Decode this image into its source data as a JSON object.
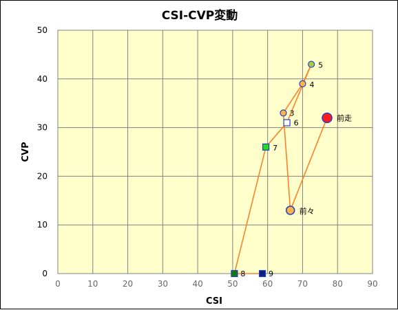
{
  "chart_data": {
    "type": "scatter",
    "title": "CSI-CVP変動",
    "xlabel": "CSI",
    "ylabel": "CVP",
    "xlim": [
      0,
      90
    ],
    "ylim": [
      0,
      50
    ],
    "xticks": [
      0,
      10,
      20,
      30,
      40,
      50,
      60,
      70,
      80,
      90
    ],
    "yticks": [
      0,
      10,
      20,
      30,
      40,
      50
    ],
    "grid": true,
    "colors": {
      "plot_background": "#FFFFCC",
      "grid": "#808080",
      "line": "#FF7F27",
      "race_circle_fill": "#FFB347",
      "race_circle_stroke": "#1E3FCC",
      "last_race_fill": "#FF1A1A",
      "square_white": "#FFFFFF",
      "square_green": "#22DD22",
      "square_darkgreen": "#117711",
      "square_navy": "#102080"
    },
    "series_order": [
      "9",
      "8",
      "7",
      "6",
      "5",
      "4",
      "3",
      "前々",
      "前走"
    ],
    "points": [
      {
        "label": "前走",
        "x": 77,
        "y": 32,
        "marker": "circle-large-red"
      },
      {
        "label": "前々",
        "x": 66.5,
        "y": 13,
        "marker": "circle-large"
      },
      {
        "label": "3",
        "x": 64.5,
        "y": 33,
        "marker": "circle"
      },
      {
        "label": "4",
        "x": 70,
        "y": 39,
        "marker": "circle"
      },
      {
        "label": "5",
        "x": 72.5,
        "y": 43,
        "marker": "circle-greenish"
      },
      {
        "label": "6",
        "x": 65.5,
        "y": 31,
        "marker": "square-white"
      },
      {
        "label": "7",
        "x": 59.5,
        "y": 26,
        "marker": "square-green"
      },
      {
        "label": "8",
        "x": 50.5,
        "y": 0,
        "marker": "square-darkgreen"
      },
      {
        "label": "9",
        "x": 58.5,
        "y": 0,
        "marker": "square-navy"
      }
    ]
  }
}
